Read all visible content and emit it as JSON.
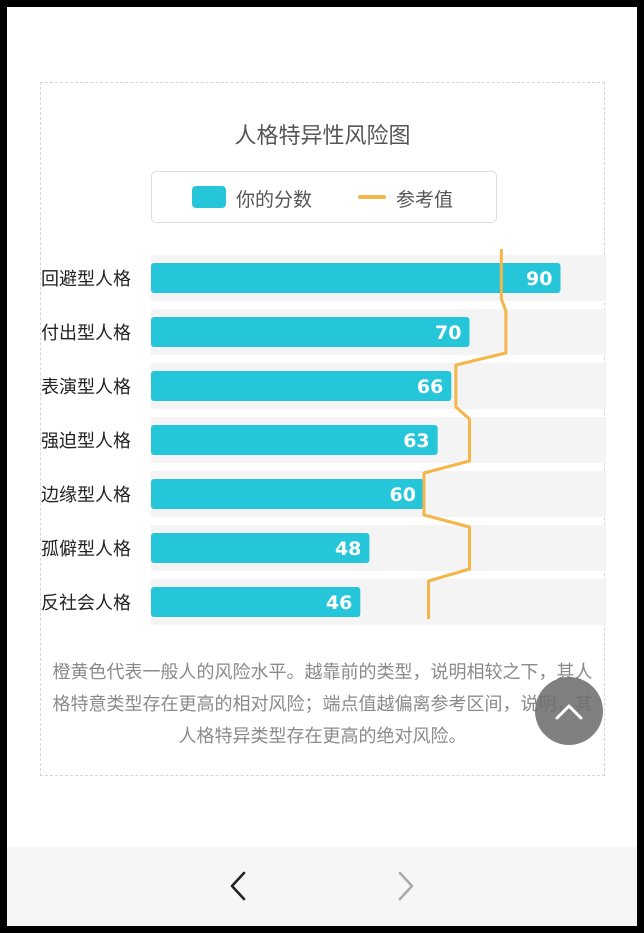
{
  "chart_data": {
    "type": "bar",
    "title": "人格特异性风险图",
    "categories": [
      "回避型人格",
      "付出型人格",
      "表演型人格",
      "强迫型人格",
      "边缘型人格",
      "孤僻型人格",
      "反社会人格"
    ],
    "series": [
      {
        "name": "你的分数",
        "values": [
          90,
          70,
          66,
          63,
          60,
          48,
          46
        ]
      },
      {
        "name": "参考值",
        "values": [
          77,
          78,
          67,
          70,
          60,
          70,
          61
        ]
      }
    ],
    "xlim": [
      0,
      100
    ],
    "grid": false,
    "legend": "top",
    "colors": {
      "bar": "#26c6da",
      "reference": "#f4b549",
      "track": "#f4f4f4"
    }
  },
  "legend": {
    "score_label": "你的分数",
    "ref_label": "参考值"
  },
  "note": "橙黄色代表一般人的风险水平。越靠前的类型，说明相较之下，其人格特意类型存在更高的相对风险；端点值越偏离参考区间，说明，其人格特异类型存在更高的绝对风险。",
  "fab": {
    "icon": "chevron-up-icon"
  },
  "nav": {
    "prev_icon": "chevron-left-icon",
    "next_icon": "chevron-right-icon"
  }
}
